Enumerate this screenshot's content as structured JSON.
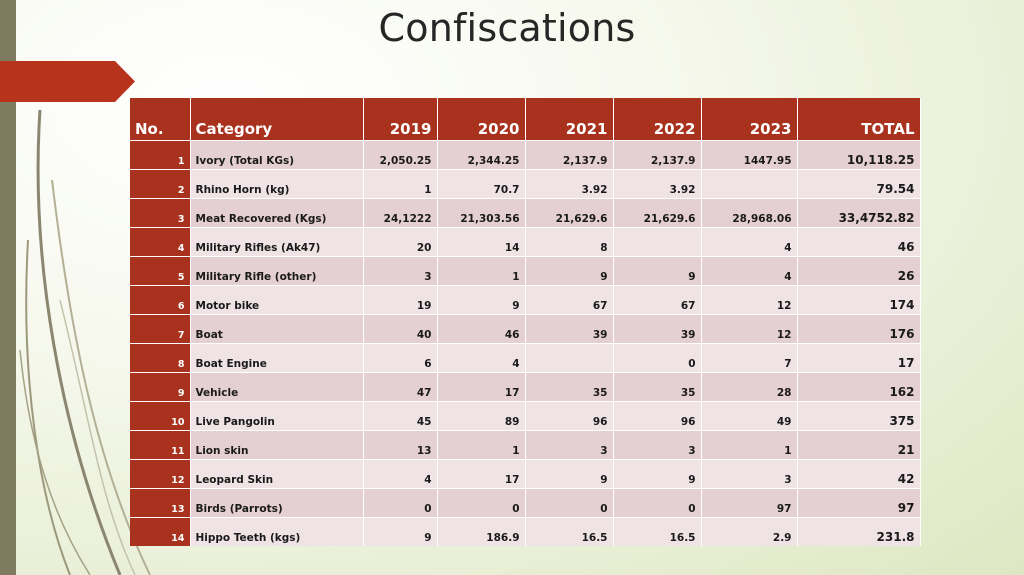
{
  "slide": {
    "title": "Confiscations"
  },
  "colors": {
    "header_bg": "#a8321d",
    "row_odd": "#e4cfd2",
    "row_even": "#f0e3e5",
    "left_strip": "#7f7b60"
  },
  "table": {
    "headers": [
      "No.",
      "Category",
      "2019",
      "2020",
      "2021",
      "2022",
      "2023",
      "TOTAL"
    ],
    "rows": [
      {
        "no": "1",
        "category": "Ivory  (Total KGs)",
        "y2019": "2,050.25",
        "y2020": "2,344.25",
        "y2021": "2,137.9",
        "y2022": "2,137.9",
        "y2023": "1447.95",
        "total": "10,118.25"
      },
      {
        "no": "2",
        "category": "Rhino Horn (kg)",
        "y2019": "1",
        "y2020": "70.7",
        "y2021": "3.92",
        "y2022": "3.92",
        "y2023": "",
        "total": "79.54"
      },
      {
        "no": "3",
        "category": "Meat Recovered (Kgs)",
        "y2019": "24,1222",
        "y2020": "21,303.56",
        "y2021": "21,629.6",
        "y2022": "21,629.6",
        "y2023": "28,968.06",
        "total": "33,4752.82"
      },
      {
        "no": "4",
        "category": "Military Rifles (Ak47)",
        "y2019": "20",
        "y2020": "14",
        "y2021": "8",
        "y2022": "",
        "y2023": "4",
        "total": "46"
      },
      {
        "no": "5",
        "category": "Military Rifle (other)",
        "y2019": "3",
        "y2020": "1",
        "y2021": "9",
        "y2022": "9",
        "y2023": "4",
        "total": "26"
      },
      {
        "no": "6",
        "category": "Motor bike",
        "y2019": "19",
        "y2020": "9",
        "y2021": "67",
        "y2022": "67",
        "y2023": "12",
        "total": "174"
      },
      {
        "no": "7",
        "category": "Boat",
        "y2019": "40",
        "y2020": "46",
        "y2021": "39",
        "y2022": "39",
        "y2023": "12",
        "total": "176"
      },
      {
        "no": "8",
        "category": "Boat Engine",
        "y2019": "6",
        "y2020": "4",
        "y2021": "",
        "y2022": "0",
        "y2023": "7",
        "total": "17"
      },
      {
        "no": "9",
        "category": "Vehicle",
        "y2019": "47",
        "y2020": "17",
        "y2021": "35",
        "y2022": "35",
        "y2023": "28",
        "total": "162"
      },
      {
        "no": "10",
        "category": "Live Pangolin",
        "y2019": "45",
        "y2020": "89",
        "y2021": "96",
        "y2022": "96",
        "y2023": "49",
        "total": "375"
      },
      {
        "no": "11",
        "category": "Lion skin",
        "y2019": "13",
        "y2020": "1",
        "y2021": "3",
        "y2022": "3",
        "y2023": "1",
        "total": "21"
      },
      {
        "no": "12",
        "category": "Leopard Skin",
        "y2019": "4",
        "y2020": "17",
        "y2021": "9",
        "y2022": "9",
        "y2023": "3",
        "total": "42"
      },
      {
        "no": "13",
        "category": "Birds (Parrots)",
        "y2019": "0",
        "y2020": "0",
        "y2021": "0",
        "y2022": "0",
        "y2023": "97",
        "total": "97"
      },
      {
        "no": "14",
        "category": "Hippo Teeth (kgs)",
        "y2019": "9",
        "y2020": "186.9",
        "y2021": "16.5",
        "y2022": "16.5",
        "y2023": "2.9",
        "total": "231.8"
      }
    ]
  }
}
